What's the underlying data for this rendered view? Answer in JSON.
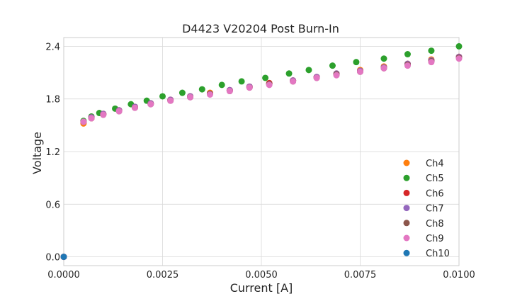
{
  "chart_data": {
    "type": "scatter",
    "title": "D4423 V20204 Post Burn-In",
    "xlabel": "Current [A]",
    "ylabel": "Voltage",
    "xlim": [
      0.0,
      0.01
    ],
    "ylim": [
      -0.1,
      2.5
    ],
    "xticks": [
      0.0,
      0.0025,
      0.005,
      0.0075,
      0.01
    ],
    "xtick_labels": [
      "0.0000",
      "0.0025",
      "0.0050",
      "0.0075",
      "0.0100"
    ],
    "yticks": [
      0.0,
      0.6,
      1.2,
      1.8,
      2.4
    ],
    "ytick_labels": [
      "0.0",
      "0.6",
      "1.2",
      "1.8",
      "2.4"
    ],
    "grid": true,
    "legend_position": "bottom-right",
    "series": [
      {
        "name": "Ch4",
        "color": "#ff7f0e",
        "x": [
          0.0,
          0.0005,
          0.0007,
          0.001,
          0.0014,
          0.0018,
          0.0022,
          0.0027,
          0.0032,
          0.0037,
          0.0042,
          0.0047,
          0.0052,
          0.0058,
          0.0064,
          0.0069,
          0.0075,
          0.0081,
          0.0087,
          0.0093,
          0.01
        ],
        "y": [
          0.0,
          1.52,
          1.58,
          1.63,
          1.67,
          1.71,
          1.75,
          1.79,
          1.83,
          1.87,
          1.9,
          1.94,
          1.98,
          2.01,
          2.05,
          2.09,
          2.13,
          2.17,
          2.2,
          2.25,
          2.28
        ]
      },
      {
        "name": "Ch5",
        "color": "#2ca02c",
        "x": [
          0.0,
          0.0005,
          0.0007,
          0.0009,
          0.0013,
          0.0017,
          0.0021,
          0.0025,
          0.003,
          0.0035,
          0.004,
          0.0045,
          0.0051,
          0.0057,
          0.0062,
          0.0068,
          0.0074,
          0.0081,
          0.0087,
          0.0093,
          0.01
        ],
        "y": [
          0.0,
          1.55,
          1.6,
          1.64,
          1.69,
          1.74,
          1.78,
          1.83,
          1.87,
          1.91,
          1.96,
          2.0,
          2.04,
          2.09,
          2.13,
          2.18,
          2.22,
          2.26,
          2.31,
          2.35,
          2.4
        ]
      },
      {
        "name": "Ch6",
        "color": "#d62728",
        "x": [
          0.0,
          0.0005,
          0.0007,
          0.001,
          0.0014,
          0.0018,
          0.0022,
          0.0027,
          0.0032,
          0.0037,
          0.0042,
          0.0047,
          0.0052,
          0.0058,
          0.0064,
          0.0069,
          0.0075,
          0.0081,
          0.0087,
          0.0093,
          0.01
        ],
        "y": [
          0.0,
          1.54,
          1.59,
          1.63,
          1.67,
          1.71,
          1.75,
          1.79,
          1.83,
          1.86,
          1.9,
          1.94,
          1.98,
          2.01,
          2.05,
          2.08,
          2.12,
          2.16,
          2.2,
          2.24,
          2.28
        ]
      },
      {
        "name": "Ch7",
        "color": "#9467bd",
        "x": [
          0.0,
          0.0005,
          0.0007,
          0.001,
          0.0014,
          0.0018,
          0.0022,
          0.0027,
          0.0032,
          0.0037,
          0.0042,
          0.0047,
          0.0052,
          0.0058,
          0.0064,
          0.0069,
          0.0075,
          0.0081,
          0.0087,
          0.0093,
          0.01
        ],
        "y": [
          0.0,
          1.54,
          1.59,
          1.63,
          1.67,
          1.71,
          1.75,
          1.79,
          1.83,
          1.86,
          1.9,
          1.94,
          1.97,
          2.01,
          2.05,
          2.09,
          2.12,
          2.16,
          2.2,
          2.24,
          2.28
        ]
      },
      {
        "name": "Ch8",
        "color": "#8c564b",
        "x": [
          0.0,
          0.0005,
          0.0007,
          0.001,
          0.0014,
          0.0018,
          0.0022,
          0.0027,
          0.0032,
          0.0037,
          0.0042,
          0.0047,
          0.0052,
          0.0058,
          0.0064,
          0.0069,
          0.0075,
          0.0081,
          0.0087,
          0.0093,
          0.01
        ],
        "y": [
          0.0,
          1.54,
          1.58,
          1.62,
          1.66,
          1.7,
          1.74,
          1.78,
          1.82,
          1.86,
          1.89,
          1.93,
          1.97,
          2.0,
          2.04,
          2.08,
          2.11,
          2.15,
          2.19,
          2.23,
          2.27
        ]
      },
      {
        "name": "Ch9",
        "color": "#e377c2",
        "x": [
          0.0,
          0.0005,
          0.0007,
          0.001,
          0.0014,
          0.0018,
          0.0022,
          0.0027,
          0.0032,
          0.0037,
          0.0042,
          0.0047,
          0.0052,
          0.0058,
          0.0064,
          0.0069,
          0.0075,
          0.0081,
          0.0087,
          0.0093,
          0.01
        ],
        "y": [
          0.0,
          1.54,
          1.58,
          1.62,
          1.66,
          1.7,
          1.74,
          1.78,
          1.82,
          1.85,
          1.89,
          1.93,
          1.96,
          2.0,
          2.04,
          2.07,
          2.11,
          2.15,
          2.18,
          2.22,
          2.26
        ]
      },
      {
        "name": "Ch10",
        "color": "#1f77b4",
        "x": [
          0.0
        ],
        "y": [
          0.0
        ]
      }
    ]
  }
}
